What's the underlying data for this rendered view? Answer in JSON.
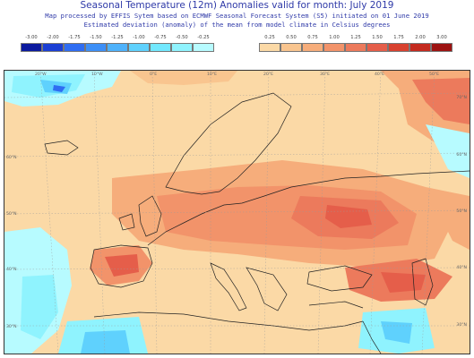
{
  "header": {
    "title": "Seasonal Temperature (12m) Anomalies valid for month: July 2019",
    "subtitle_1": "Map processed by EFFIS Sytem based on ECMWF Seasonal Forecast System (S5) initiated on 01 June 2019",
    "subtitle_2": "Estimated deviation (anomaly) of the mean from model climate in Celsius degrees"
  },
  "legend": {
    "negative": [
      {
        "label": "-3.00",
        "color": "#0b1a9e"
      },
      {
        "label": "-2.00",
        "color": "#1b3fd4"
      },
      {
        "label": "-1.75",
        "color": "#2f6df2"
      },
      {
        "label": "-1.50",
        "color": "#3d8ff7"
      },
      {
        "label": "-1.25",
        "color": "#4fb2fb"
      },
      {
        "label": "-1.00",
        "color": "#5fd1fd"
      },
      {
        "label": "-0.75",
        "color": "#72e8fe"
      },
      {
        "label": "-0.50",
        "color": "#8ff3fe"
      },
      {
        "label": "-0.25",
        "color": "#b7fbff"
      }
    ],
    "positive": [
      {
        "label": "0.25",
        "color": "#fbd9a6"
      },
      {
        "label": "0.50",
        "color": "#f9c58f"
      },
      {
        "label": "0.75",
        "color": "#f6ad7b"
      },
      {
        "label": "1.00",
        "color": "#f2936a"
      },
      {
        "label": "1.25",
        "color": "#ec7a5c"
      },
      {
        "label": "1.50",
        "color": "#e55e4a"
      },
      {
        "label": "1.75",
        "color": "#d8412f"
      },
      {
        "label": "2.00",
        "color": "#c42a1f"
      },
      {
        "label": "3.00",
        "color": "#9d1312"
      }
    ]
  },
  "map": {
    "lon_labels": [
      "20°W",
      "10°W",
      "0°E",
      "10°E",
      "20°E",
      "30°E",
      "40°E",
      "50°E",
      "60°E"
    ],
    "lat_labels": [
      "70°N",
      "60°N",
      "50°N",
      "40°N",
      "30°N"
    ]
  }
}
